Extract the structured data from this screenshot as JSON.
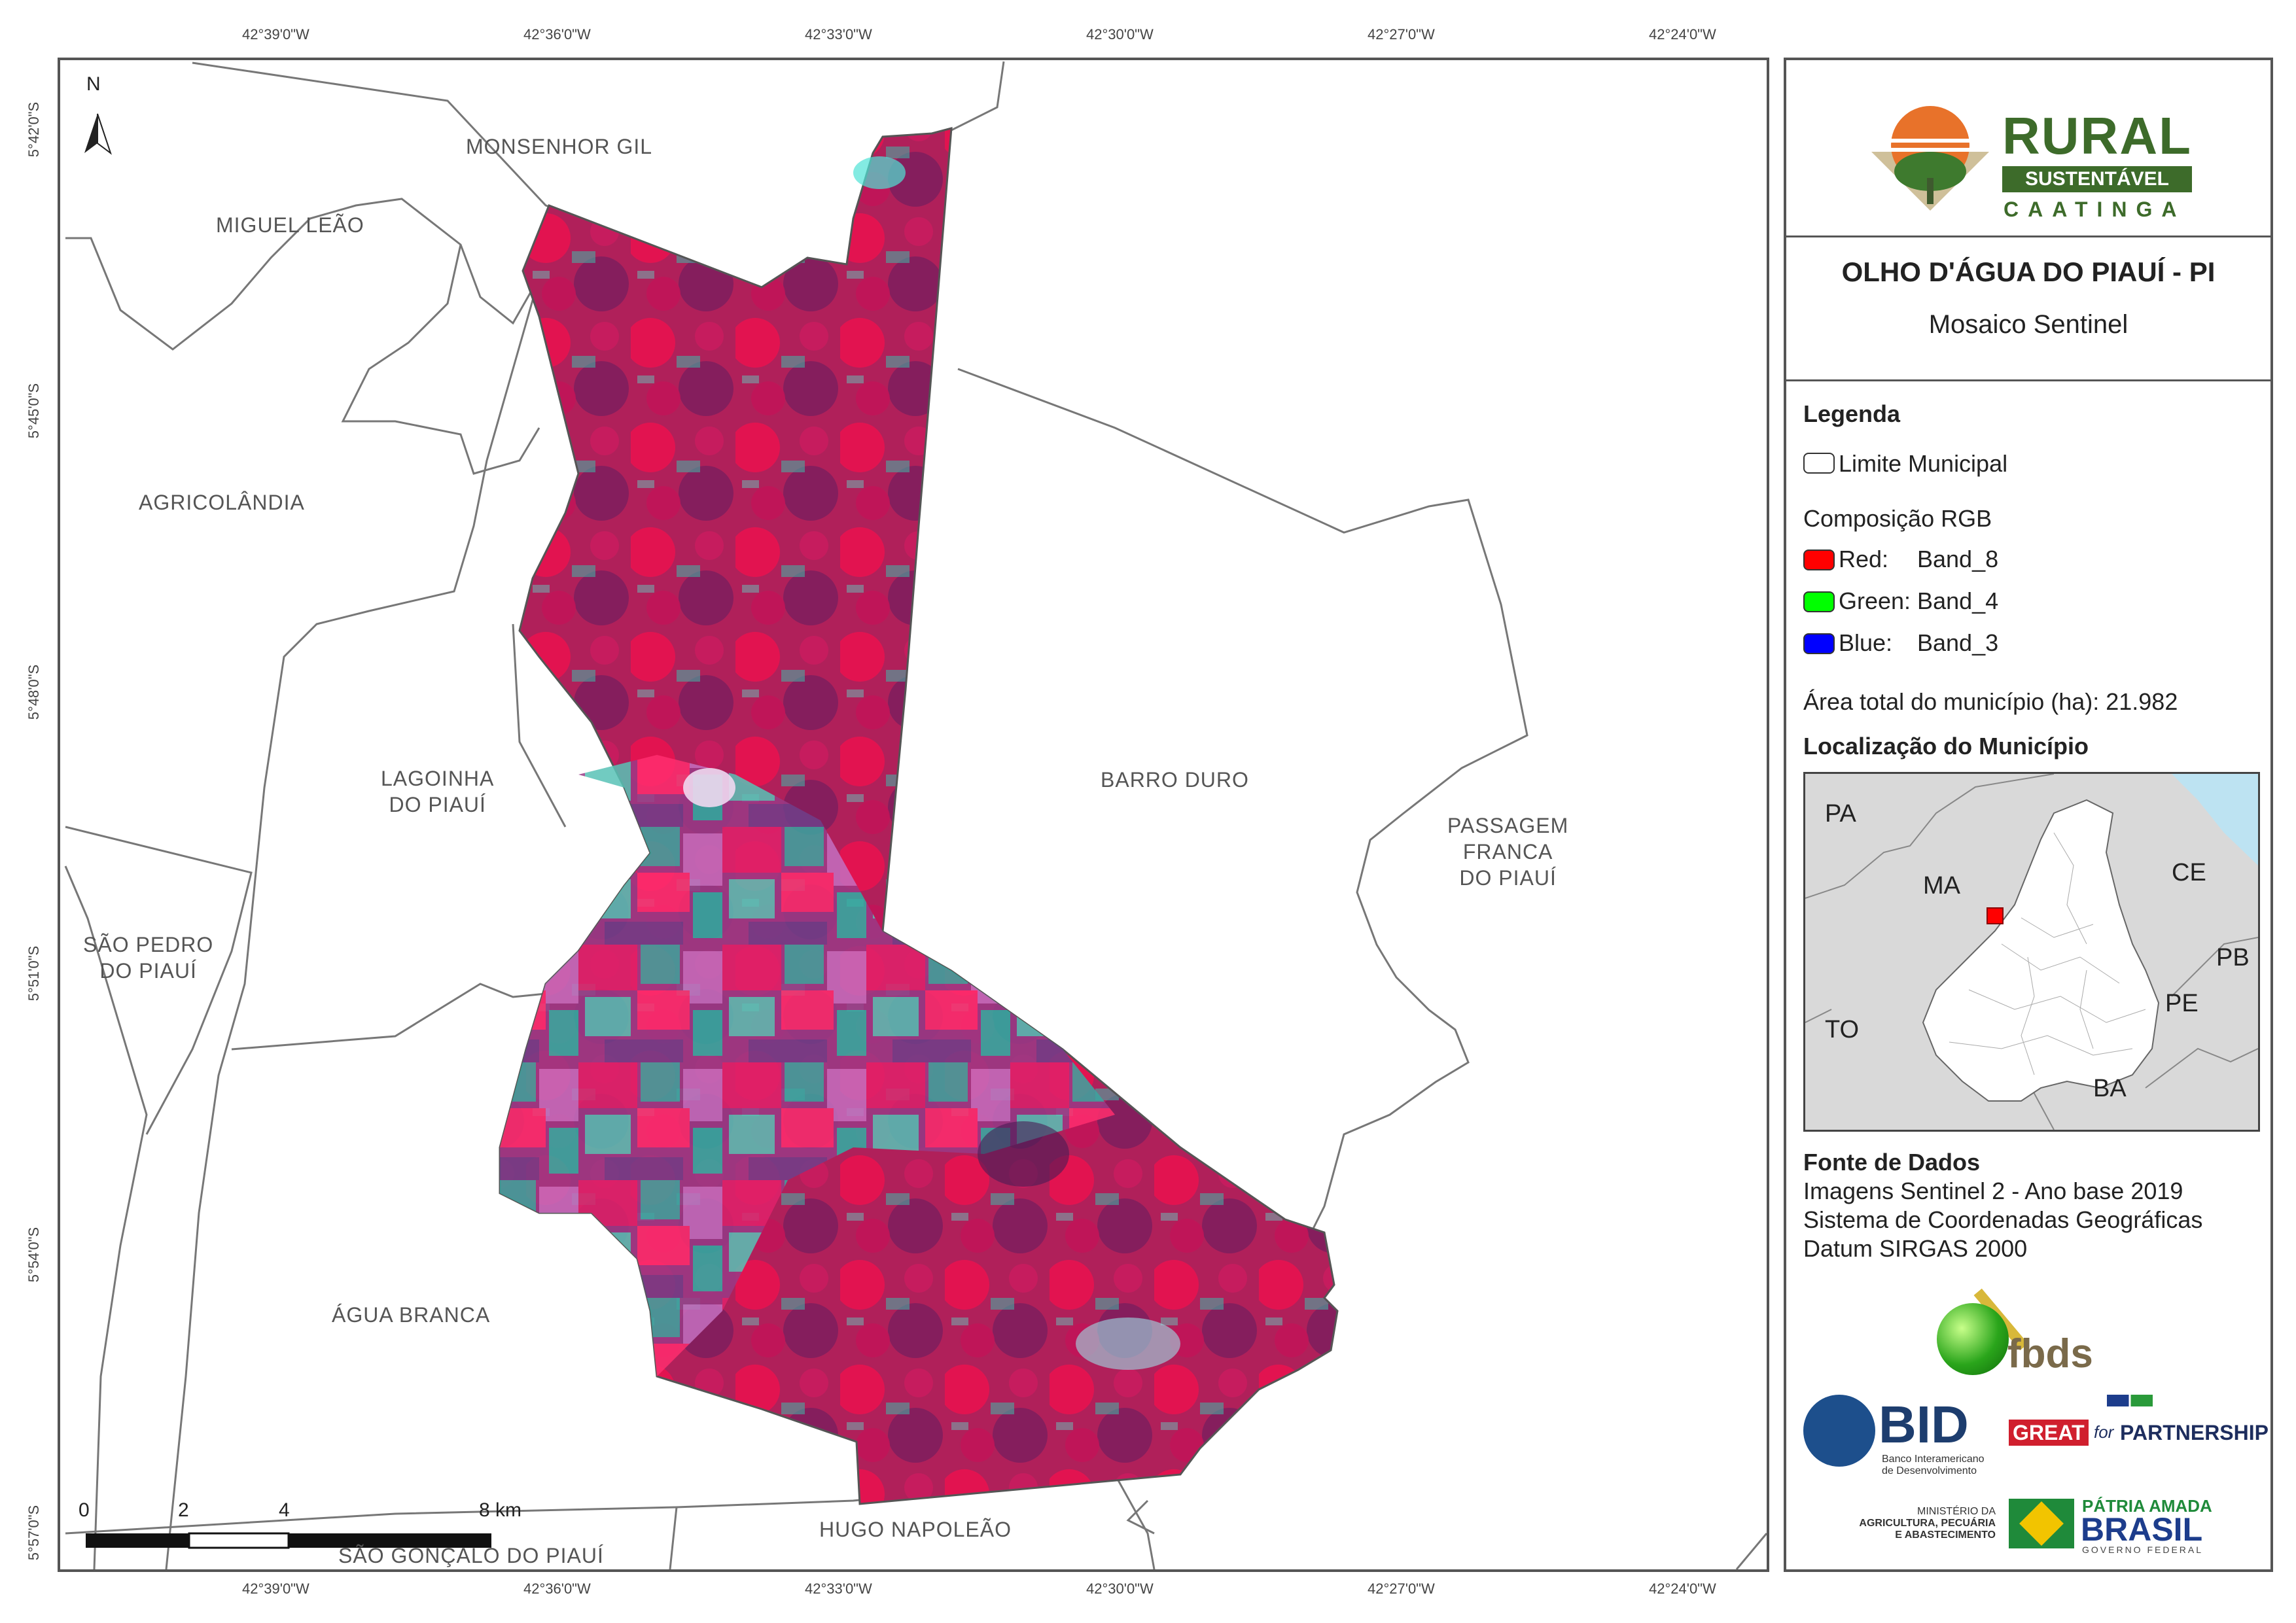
{
  "coords": {
    "lon_labels": [
      "42°39'0\"W",
      "42°36'0\"W",
      "42°33'0\"W",
      "42°30'0\"W",
      "42°27'0\"W",
      "42°24'0\"W"
    ],
    "lat_labels": [
      "5°42'0\"S",
      "5°45'0\"S",
      "5°48'0\"S",
      "5°51'0\"S",
      "5°54'0\"S",
      "5°57'0\"S"
    ]
  },
  "map": {
    "north": "N",
    "municipalities": {
      "monsenhor_gil": "MONSENHOR GIL",
      "miguel_leao": "MIGUEL LEÃO",
      "agricolandia": "AGRICOLÂNDIA",
      "lagoinha_1": "LAGOINHA",
      "lagoinha_2": "DO PIAUÍ",
      "barro_duro": "BARRO DURO",
      "passagem_1": "PASSAGEM",
      "passagem_2": "FRANCA",
      "passagem_3": "DO PIAUÍ",
      "sao_pedro_1": "SÃO PEDRO",
      "sao_pedro_2": "DO PIAUÍ",
      "agua_branca": "ÁGUA BRANCA",
      "hugo_napoleao": "HUGO NAPOLEÃO",
      "sao_goncalo": "SÃO GONÇALO DO PIAUÍ"
    },
    "scale": {
      "ticks": [
        "0",
        "2",
        "4",
        "8 km"
      ]
    }
  },
  "panel": {
    "logo": {
      "rural": "RURAL",
      "sustentavel": "SUSTENTÁVEL",
      "caatinga": "CAATINGA"
    },
    "title": "OLHO D'ÁGUA DO PIAUÍ - PI",
    "subtitle": "Mosaico Sentinel",
    "legend": {
      "heading": "Legenda",
      "limite": "Limite Municipal",
      "rgb_heading": "Composição RGB",
      "red_label": "Red:",
      "red_band": "Band_8",
      "green_label": "Green: Band_4",
      "blue_label": "Blue:",
      "blue_band": "Band_3",
      "red_color": "#ff0000",
      "green_color": "#00ff00",
      "blue_color": "#0000ff"
    },
    "area": "Área total do município (ha): 21.982",
    "localizacao": "Localização do Município",
    "inset_states": [
      "PA",
      "MA",
      "CE",
      "PB",
      "PE",
      "TO",
      "BA"
    ],
    "fonte": {
      "heading": "Fonte de Dados",
      "line1": "Imagens Sentinel 2 - Ano base 2019",
      "line2": "Sistema de Coordenadas Geográficas",
      "line3": "Datum SIRGAS 2000"
    },
    "logos": {
      "fbds": "fbds",
      "bid": "BID",
      "bid_sub1": "Banco Interamericano",
      "bid_sub2": "de Desenvolvimento",
      "great": "GREAT",
      "for": "for",
      "partnership": "PARTNERSHIP",
      "ministerio1": "MINISTÉRIO DA",
      "ministerio2": "AGRICULTURA, PECUÁRIA",
      "ministerio3": "E ABASTECIMENTO",
      "patria": "PÁTRIA AMADA",
      "brasil": "BRASIL",
      "governo": "GOVERNO FEDERAL"
    }
  }
}
